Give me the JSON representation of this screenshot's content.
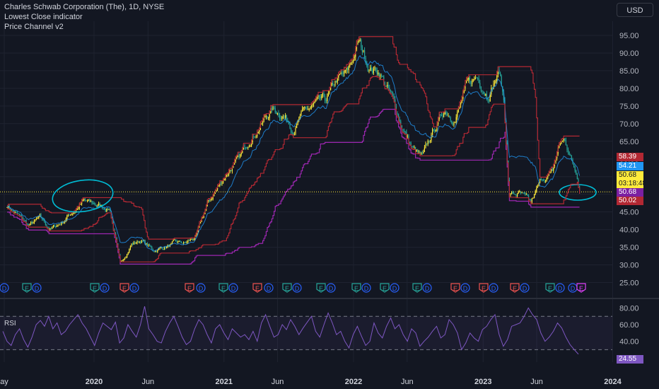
{
  "header": {
    "title": "Charles Schwab Corporation (The), 1D, NYSE",
    "indicator1": "Lowest Close indicator",
    "indicator2": "Price Channel v2",
    "currency_button": "USD"
  },
  "rsi_pane": {
    "label": "RSI"
  },
  "price_tags": [
    {
      "value": "58.39",
      "bg": "#b22833",
      "fg": "#ffffff"
    },
    {
      "value": "54.21",
      "bg": "#2196f3",
      "fg": "#ffffff"
    },
    {
      "value": "50.68",
      "bg": "#ffeb3b",
      "fg": "#131722"
    },
    {
      "value": "03:18:48",
      "bg": "#ffeb3b",
      "fg": "#131722"
    },
    {
      "value": "50.68",
      "bg": "#7b1fa2",
      "fg": "#ffffff"
    },
    {
      "value": "50.02",
      "bg": "#b22833",
      "fg": "#ffffff"
    }
  ],
  "rsi_tag": {
    "value": "24.55",
    "bg": "#7e57c2",
    "fg": "#ffffff"
  },
  "event_markers": [
    "D",
    "E",
    "D",
    "E",
    "D",
    "E",
    "D",
    "E",
    "D",
    "E",
    "D",
    "E",
    "D",
    "E",
    "D",
    "E",
    "D",
    "E",
    "D",
    "E",
    "D",
    "E",
    "D",
    "E",
    "D",
    "E",
    "D",
    "E",
    "D",
    "E",
    "D",
    "E",
    "D",
    "E",
    "D",
    "E",
    "D",
    "E"
  ],
  "colors": {
    "background": "#131722",
    "candle_up": "#ffeb3b",
    "candle_down": "#26a69a",
    "upper_channel": "#b22833",
    "mid_line": "#2196f3",
    "lowest_close": "#9c27b0",
    "rsi_line": "#7e57c2",
    "annotation_circle": "#00bcd4",
    "current_price_line": "#ffeb3b",
    "marker_earnings": "#26a69a",
    "marker_dividend": "#2962ff",
    "marker_split": "#ef5350"
  },
  "chart_data": [
    {
      "type": "line",
      "x_ticks": [
        "ay",
        "2020",
        "Jun",
        "2021",
        "Jun",
        "2022",
        "Jun",
        "2023",
        "Jun",
        "2024"
      ],
      "y_ticks": [
        25,
        30,
        35,
        40,
        45,
        50,
        55,
        60,
        65,
        70,
        75,
        80,
        85,
        90,
        95
      ],
      "y_tick_labels": [
        "25.00",
        "30.00",
        "35.00",
        "40.00",
        "45.00",
        "50.00",
        "55.00",
        "60.00",
        "65.00",
        "70.00",
        "75.00",
        "80.00",
        "85.00",
        "90.00",
        "95.00"
      ],
      "ylim": [
        22.5,
        99
      ],
      "current_price": 50.68,
      "x": [
        "2019-05-01",
        "2019-06-01",
        "2019-07-01",
        "2019-08-01",
        "2019-09-01",
        "2019-10-01",
        "2019-11-01",
        "2019-12-01",
        "2020-01-01",
        "2020-02-15",
        "2020-03-15",
        "2020-04-15",
        "2020-05-15",
        "2020-06-15",
        "2020-07-15",
        "2020-08-15",
        "2020-09-15",
        "2020-10-15",
        "2020-11-15",
        "2020-12-15",
        "2021-01-15",
        "2021-02-15",
        "2021-03-15",
        "2021-04-15",
        "2021-05-15",
        "2021-06-15",
        "2021-07-15",
        "2021-08-15",
        "2021-09-15",
        "2021-10-15",
        "2021-11-15",
        "2021-12-15",
        "2022-01-15",
        "2022-02-15",
        "2022-03-15",
        "2022-04-15",
        "2022-05-15",
        "2022-06-15",
        "2022-07-15",
        "2022-08-15",
        "2022-09-15",
        "2022-10-15",
        "2022-11-15",
        "2022-12-15",
        "2023-01-15",
        "2023-02-15",
        "2023-03-01",
        "2023-03-15",
        "2023-04-15",
        "2023-05-15",
        "2023-06-15",
        "2023-07-15",
        "2023-08-01",
        "2023-08-15",
        "2023-09-15",
        "2023-10-01"
      ],
      "series": [
        {
          "values": [
            47,
            44,
            41,
            43,
            40,
            42,
            45,
            48,
            47,
            46,
            30,
            36,
            37,
            34,
            35,
            36,
            36,
            38,
            47,
            52,
            57,
            60,
            66,
            70,
            74,
            73,
            69,
            73,
            75,
            76,
            82,
            84,
            93,
            86,
            85,
            78,
            70,
            63,
            60,
            68,
            74,
            72,
            80,
            83,
            79,
            85,
            76,
            50,
            50,
            47,
            54,
            56,
            63,
            66,
            57,
            50.68
          ]
        }
      ],
      "rsi": {
        "yticks": [
          20,
          40,
          60,
          80
        ],
        "ytick_labels": [
          "20.00",
          "40.00",
          "60.00",
          "80.00"
        ],
        "ylim": [
          15,
          88
        ],
        "upper_band": 70,
        "lower_band": 30,
        "current": 24.55,
        "values": [
          52,
          40,
          35,
          48,
          55,
          42,
          33,
          45,
          60,
          65,
          58,
          70,
          55,
          62,
          48,
          52,
          60,
          66,
          72,
          62,
          55,
          45,
          35,
          50,
          62,
          58,
          54,
          63,
          38,
          44,
          60,
          52,
          45,
          60,
          82,
          55,
          48,
          40,
          38,
          52,
          62,
          70,
          58,
          45,
          36,
          40,
          55,
          66,
          60,
          48,
          38,
          55,
          60,
          50,
          42,
          55,
          50,
          45,
          48,
          42,
          52,
          40,
          62,
          72,
          58,
          45,
          48,
          60,
          54,
          66,
          58,
          48,
          56,
          63,
          70,
          52,
          45,
          60,
          74,
          62,
          48,
          52,
          40,
          32,
          48,
          58,
          46,
          35,
          40,
          62,
          50,
          44,
          58,
          68,
          55,
          60,
          48,
          40,
          55,
          50,
          34,
          40,
          45,
          52,
          58,
          44,
          48,
          66,
          60,
          50,
          30,
          38,
          50,
          44,
          40,
          54,
          58,
          66,
          72,
          48,
          34,
          42,
          58,
          60,
          62,
          70,
          80,
          72,
          66,
          50,
          40,
          45,
          52,
          62,
          56,
          45,
          36,
          30,
          24.55
        ]
      }
    }
  ]
}
